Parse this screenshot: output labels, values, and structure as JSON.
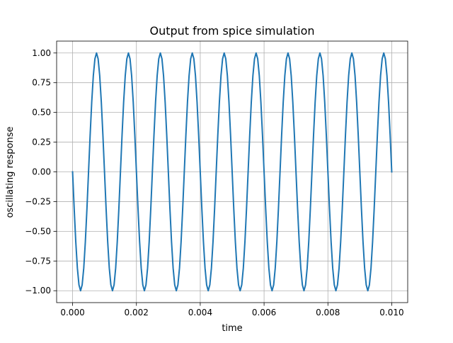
{
  "chart_data": {
    "type": "line",
    "title": "Output from spice simulation",
    "xlabel": "time",
    "ylabel": "oscillating response",
    "xlim": [
      -0.0005,
      0.0105
    ],
    "ylim": [
      -1.1,
      1.1
    ],
    "x_ticks": [
      0.0,
      0.002,
      0.004,
      0.006,
      0.008,
      0.01
    ],
    "x_tick_labels": [
      "0.000",
      "0.002",
      "0.004",
      "0.006",
      "0.008",
      "0.010"
    ],
    "y_ticks": [
      -1.0,
      -0.75,
      -0.5,
      -0.25,
      0.0,
      0.25,
      0.5,
      0.75,
      1.0
    ],
    "y_tick_labels": [
      "−1.00",
      "−0.75",
      "−0.50",
      "−0.25",
      "0.00",
      "0.25",
      "0.50",
      "0.75",
      "1.00"
    ],
    "grid": true,
    "legend": "none",
    "series": [
      {
        "color": "#1f77b4",
        "x": [
          0.0,
          5e-05,
          0.0001,
          0.00015,
          0.0002,
          0.00025,
          0.0003,
          0.00035,
          0.0004,
          0.00045,
          0.0005,
          0.00055,
          0.0006,
          0.00065,
          0.0007,
          0.00075,
          0.0008,
          0.00085,
          0.0009,
          0.00095,
          0.001,
          0.00105,
          0.0011,
          0.00115,
          0.0012,
          0.00125,
          0.0013,
          0.00135,
          0.0014,
          0.00145,
          0.0015,
          0.00155,
          0.0016,
          0.00165,
          0.0017,
          0.00175,
          0.0018,
          0.00185,
          0.0019,
          0.00195,
          0.002,
          0.00205,
          0.0021,
          0.00215,
          0.0022,
          0.00225,
          0.0023,
          0.00235,
          0.0024,
          0.00245,
          0.0025,
          0.00255,
          0.0026,
          0.00265,
          0.0027,
          0.00275,
          0.0028,
          0.00285,
          0.0029,
          0.00295,
          0.003,
          0.00305,
          0.0031,
          0.00315,
          0.0032,
          0.00325,
          0.0033,
          0.00335,
          0.0034,
          0.00345,
          0.0035,
          0.00355,
          0.0036,
          0.00365,
          0.0037,
          0.00375,
          0.0038,
          0.00385,
          0.0039,
          0.00395,
          0.004,
          0.00405,
          0.0041,
          0.00415,
          0.0042,
          0.00425,
          0.0043,
          0.00435,
          0.0044,
          0.00445,
          0.0045,
          0.00455,
          0.0046,
          0.00465,
          0.0047,
          0.00475,
          0.0048,
          0.00485,
          0.0049,
          0.00495,
          0.005,
          0.00505,
          0.0051,
          0.00515,
          0.0052,
          0.00525,
          0.0053,
          0.00535,
          0.0054,
          0.00545,
          0.0055,
          0.00555,
          0.0056,
          0.00565,
          0.0057,
          0.00575,
          0.0058,
          0.00585,
          0.0059,
          0.00595,
          0.006,
          0.00605,
          0.0061,
          0.00615,
          0.0062,
          0.00625,
          0.0063,
          0.00635,
          0.0064,
          0.00645,
          0.0065,
          0.00655,
          0.0066,
          0.00665,
          0.0067,
          0.00675,
          0.0068,
          0.00685,
          0.0069,
          0.00695,
          0.007,
          0.00705,
          0.0071,
          0.00715,
          0.0072,
          0.00725,
          0.0073,
          0.00735,
          0.0074,
          0.00745,
          0.0075,
          0.00755,
          0.0076,
          0.00765,
          0.0077,
          0.00775,
          0.0078,
          0.00785,
          0.0079,
          0.00795,
          0.008,
          0.00805,
          0.0081,
          0.00815,
          0.0082,
          0.00825,
          0.0083,
          0.00835,
          0.0084,
          0.00845,
          0.0085,
          0.00855,
          0.0086,
          0.00865,
          0.0087,
          0.00875,
          0.0088,
          0.00885,
          0.0089,
          0.00895,
          0.009,
          0.00905,
          0.0091,
          0.00915,
          0.0092,
          0.00925,
          0.0093,
          0.00935,
          0.0094,
          0.00945,
          0.0095,
          0.00955,
          0.0096,
          0.00965,
          0.0097,
          0.00975,
          0.0098,
          0.00985,
          0.0099,
          0.00995,
          0.01
        ],
        "y": [
          0.0,
          -0.309,
          -0.588,
          -0.809,
          -0.951,
          -1.0,
          -0.951,
          -0.809,
          -0.588,
          -0.309,
          0.0,
          0.309,
          0.588,
          0.809,
          0.951,
          1.0,
          0.951,
          0.809,
          0.588,
          0.309,
          0.0,
          -0.309,
          -0.588,
          -0.809,
          -0.951,
          -1.0,
          -0.951,
          -0.809,
          -0.588,
          -0.309,
          0.0,
          0.309,
          0.588,
          0.809,
          0.951,
          1.0,
          0.951,
          0.809,
          0.588,
          0.309,
          0.0,
          -0.309,
          -0.588,
          -0.809,
          -0.951,
          -1.0,
          -0.951,
          -0.809,
          -0.588,
          -0.309,
          0.0,
          0.309,
          0.588,
          0.809,
          0.951,
          1.0,
          0.951,
          0.809,
          0.588,
          0.309,
          0.0,
          -0.309,
          -0.588,
          -0.809,
          -0.951,
          -1.0,
          -0.951,
          -0.809,
          -0.588,
          -0.309,
          0.0,
          0.309,
          0.588,
          0.809,
          0.951,
          1.0,
          0.951,
          0.809,
          0.588,
          0.309,
          0.0,
          -0.309,
          -0.588,
          -0.809,
          -0.951,
          -1.0,
          -0.951,
          -0.809,
          -0.588,
          -0.309,
          0.0,
          0.309,
          0.588,
          0.809,
          0.951,
          1.0,
          0.951,
          0.809,
          0.588,
          0.309,
          0.0,
          -0.309,
          -0.588,
          -0.809,
          -0.951,
          -1.0,
          -0.951,
          -0.809,
          -0.588,
          -0.309,
          0.0,
          0.309,
          0.588,
          0.809,
          0.951,
          1.0,
          0.951,
          0.809,
          0.588,
          0.309,
          0.0,
          -0.309,
          -0.588,
          -0.809,
          -0.951,
          -1.0,
          -0.951,
          -0.809,
          -0.588,
          -0.309,
          0.0,
          0.309,
          0.588,
          0.809,
          0.951,
          1.0,
          0.951,
          0.809,
          0.588,
          0.309,
          0.0,
          -0.309,
          -0.588,
          -0.809,
          -0.951,
          -1.0,
          -0.951,
          -0.809,
          -0.588,
          -0.309,
          0.0,
          0.309,
          0.588,
          0.809,
          0.951,
          1.0,
          0.951,
          0.809,
          0.588,
          0.309,
          0.0,
          -0.309,
          -0.588,
          -0.809,
          -0.951,
          -1.0,
          -0.951,
          -0.809,
          -0.588,
          -0.309,
          0.0,
          0.309,
          0.588,
          0.809,
          0.951,
          1.0,
          0.951,
          0.809,
          0.588,
          0.309,
          0.0,
          -0.309,
          -0.588,
          -0.809,
          -0.951,
          -1.0,
          -0.951,
          -0.809,
          -0.588,
          -0.309,
          0.0,
          0.309,
          0.588,
          0.809,
          0.951,
          1.0,
          0.951,
          0.809,
          0.588,
          0.309,
          0.0
        ]
      }
    ]
  }
}
